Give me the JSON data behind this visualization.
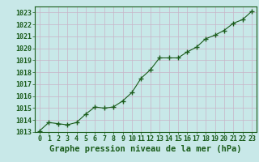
{
  "x": [
    0,
    1,
    2,
    3,
    4,
    5,
    6,
    7,
    8,
    9,
    10,
    11,
    12,
    13,
    14,
    15,
    16,
    17,
    18,
    19,
    20,
    21,
    22,
    23
  ],
  "y": [
    1013.1,
    1013.8,
    1013.7,
    1013.6,
    1013.8,
    1014.5,
    1015.1,
    1015.0,
    1015.1,
    1015.6,
    1016.3,
    1017.5,
    1018.2,
    1019.2,
    1019.2,
    1019.2,
    1019.7,
    1020.1,
    1020.8,
    1021.1,
    1021.5,
    1022.1,
    1022.4,
    1023.1
  ],
  "ylim": [
    1013,
    1023.5
  ],
  "yticks": [
    1013,
    1014,
    1015,
    1016,
    1017,
    1018,
    1019,
    1020,
    1021,
    1022,
    1023
  ],
  "xticks": [
    0,
    1,
    2,
    3,
    4,
    5,
    6,
    7,
    8,
    9,
    10,
    11,
    12,
    13,
    14,
    15,
    16,
    17,
    18,
    19,
    20,
    21,
    22,
    23
  ],
  "xlabel": "Graphe pression niveau de la mer (hPa)",
  "line_color": "#1a5c1a",
  "marker": "+",
  "background_color": "#c8e8e8",
  "grid_color": "#c8b4c8",
  "tick_color": "#1a5c1a",
  "label_fontsize": 6,
  "xlabel_fontsize": 7.5
}
